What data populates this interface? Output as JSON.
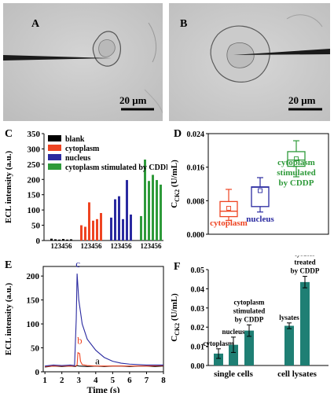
{
  "panels": {
    "A": {
      "letter": "A",
      "scale_bar": "20 μm"
    },
    "B": {
      "letter": "B",
      "scale_bar": "20 μm"
    },
    "C": {
      "letter": "C"
    },
    "D": {
      "letter": "D"
    },
    "E": {
      "letter": "E"
    },
    "F": {
      "letter": "F"
    }
  },
  "colors": {
    "blank": "#000000",
    "cytoplasm": "#ee4422",
    "nucleus": "#2a2aa0",
    "cddp": "#2e9a3a",
    "teal": "#1f7f74"
  },
  "chart_data": [
    {
      "panel": "C",
      "type": "bar",
      "ylabel": "ECL intensity (a.u.)",
      "ylim": [
        0,
        350
      ],
      "yticks": [
        0,
        50,
        100,
        150,
        200,
        250,
        300,
        350
      ],
      "x_group_labels": [
        "123456",
        "123456",
        "123456",
        "123456"
      ],
      "legend_position": "top-left",
      "series": [
        {
          "name": "blank",
          "color": "#000000",
          "values": [
            6,
            4,
            3,
            5,
            3,
            4
          ]
        },
        {
          "name": "cytoplasm",
          "color": "#ee4422",
          "values": [
            50,
            45,
            125,
            65,
            70,
            90
          ]
        },
        {
          "name": "nucleus",
          "color": "#2a2aa0",
          "values": [
            75,
            135,
            145,
            70,
            198,
            85
          ]
        },
        {
          "name": "cytoplasm stimulated by CDDP",
          "color": "#2e9a3a",
          "values": [
            80,
            265,
            195,
            215,
            198,
            183
          ]
        }
      ]
    },
    {
      "panel": "D",
      "type": "box",
      "ylabel": "CCK2 (U/mL)",
      "ylabel_main": "C",
      "ylabel_sub": "CK2",
      "ylabel_unit": " (U/mL)",
      "ylim": [
        0,
        0.024
      ],
      "yticks": [
        "0.000",
        "0.008",
        "0.016",
        "0.024"
      ],
      "boxes": [
        {
          "name": "cytoplasm",
          "label_lines": [
            "cytoplasm"
          ],
          "color": "#ee4422",
          "min": 0.0033,
          "q1": 0.0042,
          "median": 0.0055,
          "q3": 0.0078,
          "max": 0.0107,
          "mean": 0.0062
        },
        {
          "name": "nucleus",
          "label_lines": [
            "nucleus"
          ],
          "color": "#2a2aa0",
          "min": 0.0053,
          "q1": 0.0066,
          "median": 0.0112,
          "q3": 0.0113,
          "max": 0.0135,
          "mean": 0.0104
        },
        {
          "name": "cytoplasm stimulated by CDDP",
          "label_lines": [
            "cytoplasm",
            "stimulated",
            "by CDDP"
          ],
          "color": "#2e9a3a",
          "min": 0.0137,
          "q1": 0.0162,
          "median": 0.0177,
          "q3": 0.0197,
          "max": 0.0223,
          "mean": 0.018
        }
      ]
    },
    {
      "panel": "E",
      "type": "line",
      "xlabel": "Time (s)",
      "ylabel": "ECL intensity (a.u.)",
      "xlim": [
        0.9,
        8
      ],
      "ylim": [
        0,
        220
      ],
      "xticks": [
        1,
        2,
        3,
        4,
        5,
        6,
        7,
        8
      ],
      "yticks": [
        0,
        50,
        100,
        150,
        200
      ],
      "series": [
        {
          "name": "a",
          "color": "#000000",
          "x": [
            1,
            1.5,
            2,
            2.5,
            2.8,
            2.9,
            3.0,
            3.5,
            4,
            4.5,
            5,
            5.5,
            6,
            6.5,
            7,
            7.5,
            8
          ],
          "y": [
            10,
            12,
            11,
            12,
            11,
            13,
            12,
            11,
            12,
            11,
            12,
            12,
            11,
            12,
            12,
            11,
            12
          ]
        },
        {
          "name": "b",
          "color": "#ee4422",
          "x": [
            1,
            1.5,
            2,
            2.5,
            2.8,
            2.9,
            2.95,
            3.05,
            3.1,
            3.2,
            3.5,
            4,
            5,
            6,
            7,
            8
          ],
          "y": [
            11,
            12,
            12,
            12,
            12,
            14,
            40,
            38,
            22,
            15,
            13,
            12,
            12,
            12,
            12,
            13
          ]
        },
        {
          "name": "c",
          "color": "#2a2aa0",
          "x": [
            1,
            1.5,
            2,
            2.5,
            2.75,
            2.85,
            2.9,
            3.0,
            3.2,
            3.5,
            4,
            4.5,
            5,
            5.5,
            6,
            7,
            8
          ],
          "y": [
            12,
            14,
            13,
            14,
            13,
            110,
            205,
            150,
            100,
            68,
            45,
            30,
            22,
            18,
            16,
            14,
            14
          ]
        }
      ]
    },
    {
      "panel": "F",
      "type": "bar",
      "ylabel": "CCK2 (U/mL)",
      "ylabel_main": "C",
      "ylabel_sub": "CK2",
      "ylabel_unit": " (U/mL)",
      "ylim": [
        0,
        0.05
      ],
      "yticks": [
        "0.00",
        "0.01",
        "0.02",
        "0.03",
        "0.04",
        "0.05"
      ],
      "color": "#1f7f74",
      "groups": [
        "single cells",
        "cell lysates"
      ],
      "bars": [
        {
          "group": 0,
          "label_lines": [
            "cytoplasm"
          ],
          "value": 0.0062,
          "err": 0.0025
        },
        {
          "group": 0,
          "label_lines": [
            "nucleus"
          ],
          "value": 0.0108,
          "err": 0.004
        },
        {
          "group": 0,
          "label_lines": [
            "cytoplasm",
            "stimulated",
            "by CDDP"
          ],
          "value": 0.0182,
          "err": 0.003
        },
        {
          "group": 1,
          "label_lines": [
            "lysates"
          ],
          "value": 0.0207,
          "err": 0.0015
        },
        {
          "group": 1,
          "label_lines": [
            "lysates",
            "treated",
            "by CDDP"
          ],
          "value": 0.0435,
          "err": 0.003
        }
      ]
    }
  ]
}
